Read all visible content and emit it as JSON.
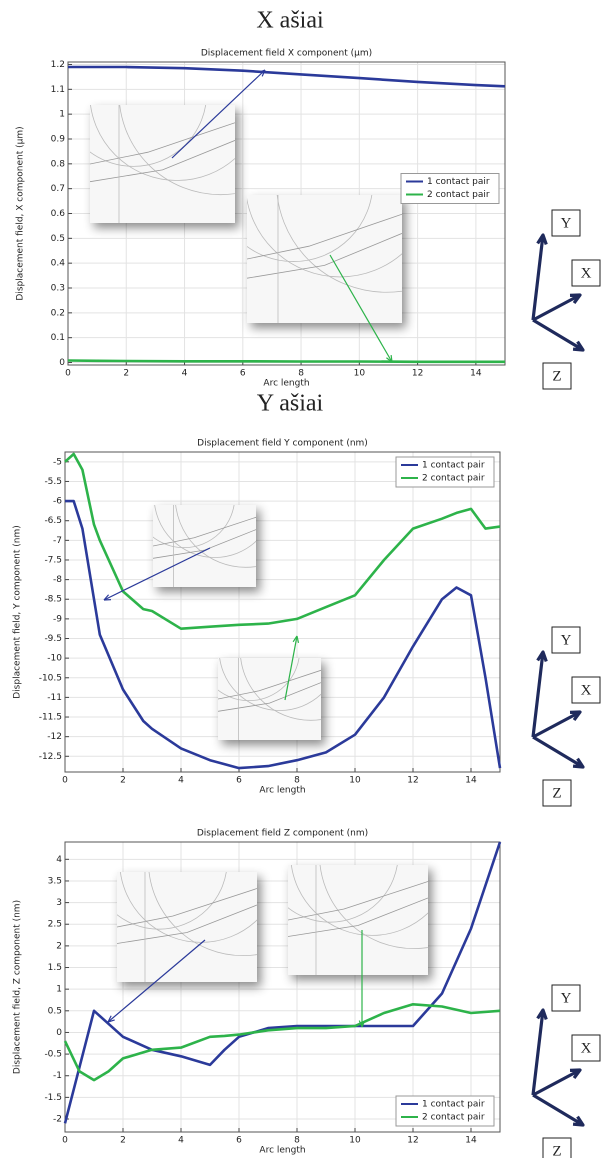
{
  "chart_data": [
    {
      "type": "line",
      "section_title": "X ašiai",
      "title": "Displacement field X component (µm)",
      "xlabel": "Arc length",
      "ylabel": "Displacement field, X component (µm)",
      "xlim": [
        0,
        15
      ],
      "xticks": [
        0,
        2,
        4,
        6,
        8,
        10,
        12,
        14
      ],
      "ylim": [
        -0.01,
        1.21
      ],
      "yticks": [
        0,
        0.1,
        0.2,
        0.3,
        0.4,
        0.5,
        0.6,
        0.7,
        0.8,
        0.9,
        1,
        1.1,
        1.2
      ],
      "grid": true,
      "legend": "center right",
      "triad_labels": [
        "Y",
        "X",
        "Z"
      ],
      "x": [
        0,
        1,
        2,
        4,
        6,
        8,
        10,
        12,
        14,
        15
      ],
      "series": [
        {
          "name": "1 contact pair",
          "color": "#2b3a9a",
          "values": [
            1.19,
            1.19,
            1.19,
            1.185,
            1.175,
            1.16,
            1.145,
            1.13,
            1.117,
            1.112
          ]
        },
        {
          "name": "2 contact pair",
          "color": "#2db34a",
          "values": [
            0.008,
            0.007,
            0.006,
            0.005,
            0.005,
            0.004,
            0.004,
            0.003,
            0.003,
            0.003
          ]
        }
      ]
    },
    {
      "type": "line",
      "section_title": "Y ašiai",
      "title": "Displacement field Y component (nm)",
      "xlabel": "Arc length",
      "ylabel": "Displacement field, Y component (nm)",
      "xlim": [
        0,
        15
      ],
      "xticks": [
        0,
        2,
        4,
        6,
        8,
        10,
        12,
        14
      ],
      "ylim": [
        -12.9,
        -4.75
      ],
      "yticks": [
        -12.5,
        -12,
        -11.5,
        -11,
        -10.5,
        -10,
        -9.5,
        -9,
        -8.5,
        -8,
        -7.5,
        -7,
        -6.5,
        -6,
        -5.5,
        -5
      ],
      "grid": true,
      "legend": "upper right",
      "triad_labels": [
        "Y",
        "X",
        "Z"
      ],
      "x": [
        0,
        0.3,
        0.6,
        1,
        1.2,
        2,
        2.7,
        3,
        4,
        5,
        6,
        7,
        8,
        9,
        10,
        11,
        12,
        13,
        13.5,
        14,
        14.5,
        15
      ],
      "series": [
        {
          "name": "1 contact pair",
          "color": "#2b3a9a",
          "values": [
            -6.0,
            -6.0,
            -6.7,
            -8.5,
            -9.4,
            -10.8,
            -11.6,
            -11.8,
            -12.3,
            -12.6,
            -12.8,
            -12.75,
            -12.6,
            -12.4,
            -11.95,
            -11.0,
            -9.7,
            -8.5,
            -8.2,
            -8.4,
            -10.5,
            -12.8
          ]
        },
        {
          "name": "2 contact pair",
          "color": "#2db34a",
          "values": [
            -5.0,
            -4.8,
            -5.2,
            -6.6,
            -7.0,
            -8.3,
            -8.75,
            -8.8,
            -9.25,
            -9.2,
            -9.15,
            -9.12,
            -9.0,
            -8.7,
            -8.4,
            -7.5,
            -6.7,
            -6.45,
            -6.3,
            -6.2,
            -6.7,
            -6.65
          ]
        }
      ]
    },
    {
      "type": "line",
      "title": "Displacement field Z component (nm)",
      "xlabel": "Arc length",
      "ylabel": "Displacement field, Z component (nm)",
      "xlim": [
        0,
        15
      ],
      "xticks": [
        0,
        2,
        4,
        6,
        8,
        10,
        12,
        14
      ],
      "ylim": [
        -2.3,
        4.4
      ],
      "yticks": [
        -2,
        -1.5,
        -1,
        -0.5,
        0,
        0.5,
        1,
        1.5,
        2,
        2.5,
        3,
        3.5,
        4
      ],
      "grid": true,
      "legend": "lower right",
      "triad_labels": [
        "Y",
        "X",
        "Z"
      ],
      "x": [
        0,
        0.5,
        1,
        1.5,
        2,
        3,
        4,
        5,
        5.5,
        6,
        7,
        8,
        9,
        10,
        11,
        12,
        13,
        14,
        15
      ],
      "series": [
        {
          "name": "1 contact pair",
          "color": "#2b3a9a",
          "values": [
            -2.1,
            -0.8,
            0.5,
            0.2,
            -0.1,
            -0.4,
            -0.55,
            -0.75,
            -0.4,
            -0.1,
            0.1,
            0.15,
            0.15,
            0.15,
            0.15,
            0.15,
            0.9,
            2.4,
            4.4
          ]
        },
        {
          "name": "2 contact pair",
          "color": "#2db34a",
          "values": [
            -0.2,
            -0.9,
            -1.1,
            -0.9,
            -0.6,
            -0.4,
            -0.35,
            -0.1,
            -0.08,
            -0.05,
            0.05,
            0.1,
            0.1,
            0.15,
            0.45,
            0.65,
            0.6,
            0.45,
            0.5
          ]
        }
      ]
    }
  ]
}
